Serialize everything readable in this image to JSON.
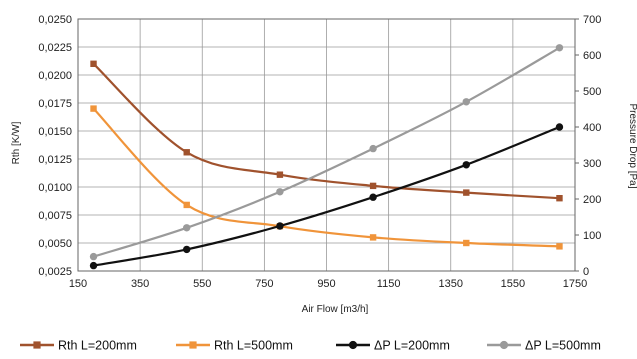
{
  "chart_data": {
    "type": "line",
    "xlabel": "Air Flow [m3/h]",
    "ylabel_left": "Rth [K/W]",
    "ylabel_right": "Pressure Drop [Pa]",
    "xlim": [
      150,
      1750
    ],
    "xticks": [
      150,
      350,
      550,
      750,
      950,
      1150,
      1350,
      1550,
      1750
    ],
    "xtick_labels": [
      "150",
      "350",
      "550",
      "750",
      "950",
      "1150",
      "1350",
      "1550",
      "1750"
    ],
    "ylim_left": [
      0.0025,
      0.025
    ],
    "yticks_left": [
      0.0025,
      0.005,
      0.0075,
      0.01,
      0.0125,
      0.015,
      0.0175,
      0.02,
      0.0225,
      0.025
    ],
    "ytick_labels_left": [
      "0,0025",
      "0,0050",
      "0,0075",
      "0,0100",
      "0,0125",
      "0,0150",
      "0,0175",
      "0,0200",
      "0,0225",
      "0,0250"
    ],
    "ylim_right": [
      0,
      700
    ],
    "yticks_right": [
      0,
      100,
      200,
      300,
      400,
      500,
      600,
      700
    ],
    "ytick_labels_right": [
      "0",
      "100",
      "200",
      "300",
      "400",
      "500",
      "600",
      "700"
    ],
    "grid": true,
    "legend_position": "bottom",
    "series": [
      {
        "name": "Rth L=200mm",
        "axis": "left",
        "color": "#a0522d",
        "marker": "square",
        "x": [
          200,
          500,
          800,
          1100,
          1400,
          1700
        ],
        "y": [
          0.021,
          0.0131,
          0.0111,
          0.0101,
          0.0095,
          0.009
        ]
      },
      {
        "name": "Rth L=500mm",
        "axis": "left",
        "color": "#f0943a",
        "marker": "square",
        "x": [
          200,
          500,
          800,
          1100,
          1400,
          1700
        ],
        "y": [
          0.017,
          0.0084,
          0.0065,
          0.0055,
          0.005,
          0.0047
        ]
      },
      {
        "name": "ΔP L=200mm",
        "axis": "right",
        "color": "#111111",
        "marker": "circle",
        "x": [
          200,
          500,
          800,
          1100,
          1400,
          1700
        ],
        "y": [
          15,
          60,
          125,
          205,
          295,
          400
        ]
      },
      {
        "name": "ΔP L=500mm",
        "axis": "right",
        "color": "#9a9a9a",
        "marker": "circle",
        "x": [
          200,
          500,
          800,
          1100,
          1400,
          1700
        ],
        "y": [
          40,
          120,
          220,
          340,
          470,
          620
        ]
      }
    ]
  }
}
